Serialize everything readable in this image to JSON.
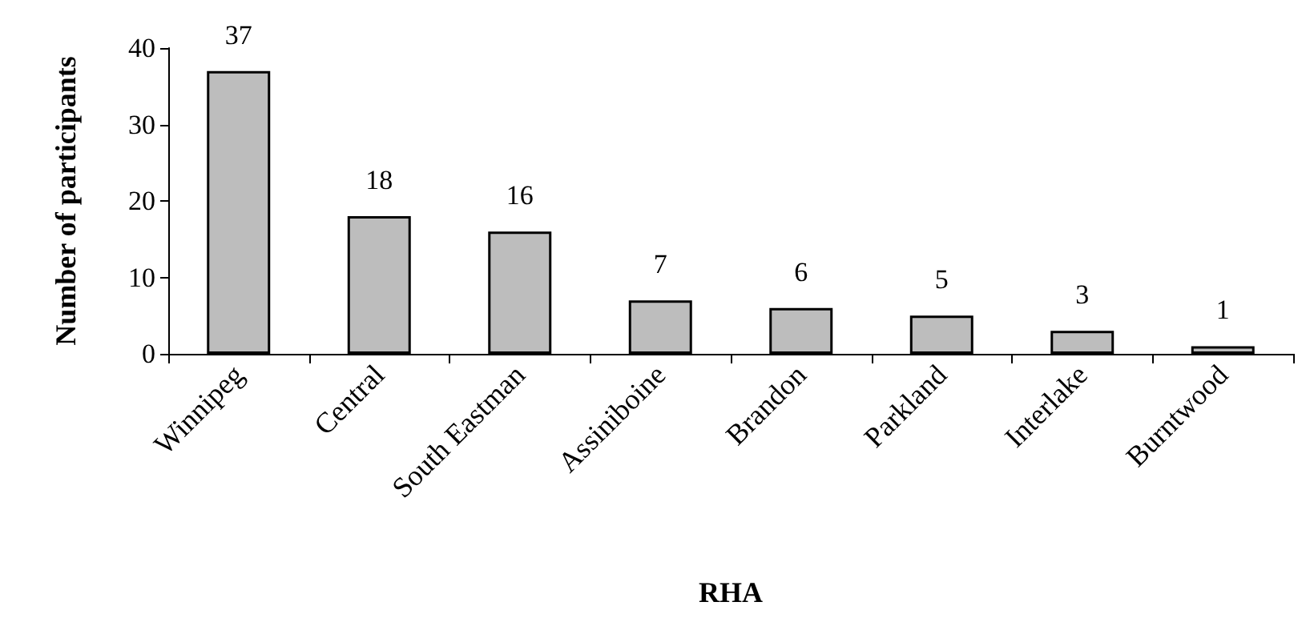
{
  "chart_data": {
    "type": "bar",
    "xlabel": "RHA",
    "ylabel": "Number of participants",
    "categories": [
      "Winnipeg",
      "Central",
      "South Eastman",
      "Assiniboine",
      "Brandon",
      "Parkland",
      "Interlake",
      "Burntwood"
    ],
    "values": [
      37,
      18,
      16,
      7,
      6,
      5,
      3,
      1
    ],
    "color": "#bdbdbd",
    "data_labels": true,
    "ylim": [
      0,
      40
    ],
    "yticks": [
      0,
      10,
      20,
      30,
      40
    ],
    "grid": false
  }
}
